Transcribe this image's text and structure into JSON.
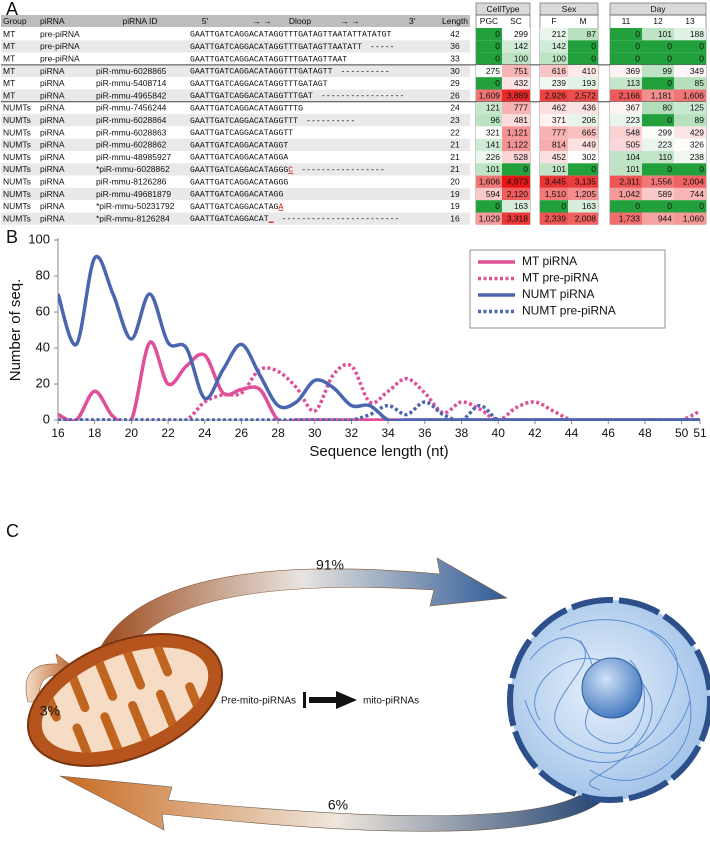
{
  "panel_labels": [
    "A",
    "B",
    "C"
  ],
  "table": {
    "headers": [
      "Group",
      "piRNA",
      "piRNA ID",
      "Length"
    ],
    "seq_header": [
      "5'",
      "→ →",
      "Dloop",
      "→ →",
      "3'"
    ],
    "group_headers": [
      {
        "label": "CellType",
        "columns": [
          "PGC",
          "SC"
        ]
      },
      {
        "label": "Sex",
        "columns": [
          "F",
          "M"
        ]
      },
      {
        "label": "Day",
        "columns": [
          "11",
          "12",
          "13"
        ]
      }
    ],
    "rows": [
      {
        "group": "MT",
        "type": "pre-piRNA",
        "seq": "GAATTGATCAGGACATAGGTTTGATAGTTAATATTATATGT",
        "length": "42",
        "values": [
          "0",
          "299",
          "212",
          "87",
          "0",
          "101",
          "188"
        ]
      },
      {
        "group": "MT",
        "type": "pre-piRNA",
        "seq": "GAATTGATCAGGACATAGGTTTGATAGTTAATATT",
        "gap": "-----",
        "length": "36",
        "values": [
          "0",
          "142",
          "142",
          "0",
          "0",
          "0",
          "0"
        ]
      },
      {
        "group": "MT",
        "type": "pre-piRNA",
        "seq": "GAATTGATCAGGACATAGGTTTGATAGTTAAT",
        "length": "33",
        "values": [
          "0",
          "100",
          "100",
          "0",
          "0",
          "0",
          "0"
        ]
      },
      {
        "group": "MT",
        "type": "piRNA",
        "id": "piR-mmu-6028865",
        "seq": "GAATTGATCAGGACATAGGTTTGATAGTT",
        "gap": "----------",
        "length": "30",
        "values": [
          "275",
          "751",
          "616",
          "410",
          "369",
          "99",
          "349"
        ]
      },
      {
        "group": "MT",
        "type": "piRNA",
        "id": "piR-mmu-5408714",
        "seq": "GAATTGATCAGGACATAGGTTTGATAGT",
        "length": "29",
        "values": [
          "0",
          "432",
          "239",
          "193",
          "113",
          "0",
          "85"
        ]
      },
      {
        "group": "MT",
        "type": "piRNA",
        "id": "piR-mmu-4965842",
        "seq": "GAATTGATCAGGACATAGGTTTGAT",
        "gap": "-----------------",
        "length": "26",
        "values": [
          "1,609",
          "3,889",
          "2,926",
          "2,572",
          "2,166",
          "1,181",
          "1,606"
        ]
      },
      {
        "group": "NUMTs",
        "type": "piRNA",
        "id": "piR-mmu-7456244",
        "seq": "GAATTGATCAGGACATAGGTTTG",
        "length": "24",
        "values": [
          "121",
          "777",
          "462",
          "436",
          "367",
          "80",
          "125"
        ]
      },
      {
        "group": "NUMTs",
        "type": "piRNA",
        "id": "piR-mmu-6028864",
        "seq": "GAATTGATCAGGACATAGGTTT",
        "gap": "----------",
        "length": "23",
        "values": [
          "96",
          "481",
          "371",
          "206",
          "223",
          "0",
          "89"
        ]
      },
      {
        "group": "NUMTs",
        "type": "piRNA",
        "id": "piR-mmu-6028863",
        "seq": "GAATTGATCAGGACATAGGTT",
        "length": "22",
        "values": [
          "321",
          "1,121",
          "777",
          "665",
          "548",
          "299",
          "429"
        ]
      },
      {
        "group": "NUMTs",
        "type": "piRNA",
        "id": "piR-mmu-6028862",
        "seq": "GAATTGATCAGGACATAGGT",
        "length": "21",
        "values": [
          "141",
          "1,122",
          "814",
          "449",
          "505",
          "223",
          "326"
        ]
      },
      {
        "group": "NUMTs",
        "type": "piRNA",
        "id": "piR-mmu-48985927",
        "seq": "GAATTGATCAGGACATAGGA",
        "length": "21",
        "values": [
          "226",
          "528",
          "452",
          "302",
          "104",
          "110",
          "238"
        ]
      },
      {
        "group": "NUMTs",
        "type": "piRNA",
        "id": "*piR-mmu-6028862",
        "seq": "GAATTGATCAGGACATAGGG",
        "mut": "C",
        "gap": "-----------------",
        "length": "21",
        "values": [
          "101",
          "0",
          "101",
          "0",
          "101",
          "0",
          "0"
        ]
      },
      {
        "group": "NUMTs",
        "type": "piRNA",
        "id": "piR-mmu-8126286",
        "seq": "GAATTGATCAGGACATAGGG",
        "length": "20",
        "values": [
          "1,606",
          "4,973",
          "3,445",
          "3,135",
          "2,311",
          "1,556",
          "2,004"
        ]
      },
      {
        "group": "NUMTs",
        "type": "piRNA",
        "id": "piR-mmu-49681879",
        "seq": "GAATTGATCAGGACATAGG",
        "length": "19",
        "values": [
          "594",
          "2,120",
          "1,510",
          "1,205",
          "1,042",
          "589",
          "744"
        ]
      },
      {
        "group": "NUMTs",
        "type": "piRNA",
        "id": "*piR-mmu-50231792",
        "seq": "GAATTGATCAGGACATAG",
        "mut": "A",
        "length": "19",
        "values": [
          "0",
          "163",
          "0",
          "163",
          "0",
          "0",
          "0"
        ]
      },
      {
        "group": "NUMTs",
        "type": "piRNA",
        "id": "*piR-mmu-8126284",
        "seq": "GAATTGATCAGGACAT",
        "mut": "_",
        "gap": "------------------------",
        "length": "16",
        "values": [
          "1,029",
          "3,318",
          "2,339",
          "2,008",
          "1,733",
          "944",
          "1,060"
        ]
      }
    ]
  },
  "chart_data": {
    "type": "line",
    "xlabel": "Sequence length (nt)",
    "ylabel": "Number of seq.",
    "x": [
      16,
      17,
      18,
      19,
      20,
      21,
      22,
      23,
      24,
      25,
      26,
      27,
      28,
      29,
      30,
      31,
      32,
      33,
      34,
      35,
      36,
      37,
      38,
      39,
      40,
      41,
      42,
      43,
      44,
      45,
      46,
      47,
      48,
      49,
      50,
      51
    ],
    "xlim": [
      16,
      51
    ],
    "ylim": [
      0,
      100
    ],
    "xticks": [
      16,
      18,
      20,
      22,
      24,
      26,
      28,
      30,
      32,
      34,
      36,
      38,
      40,
      42,
      44,
      46,
      48,
      50,
      51
    ],
    "yticks": [
      0,
      20,
      40,
      60,
      80,
      100
    ],
    "legend": "upper right",
    "series": [
      {
        "name": "MT piRNA",
        "color": "#e0509a",
        "style": "solid",
        "values": [
          3,
          0,
          16,
          2,
          0,
          43,
          20,
          30,
          36,
          15,
          17,
          17,
          0,
          0,
          0,
          0,
          0,
          0,
          0,
          0,
          0,
          0,
          0,
          0,
          0,
          0,
          0,
          0,
          0,
          0,
          0,
          0,
          0,
          0,
          0,
          0
        ]
      },
      {
        "name": "MT pre-piRNA",
        "color": "#e0509a",
        "style": "dotted",
        "values": [
          0,
          0,
          0,
          0,
          0,
          0,
          0,
          0,
          10,
          14,
          15,
          28,
          27,
          18,
          5,
          25,
          30,
          10,
          16,
          23,
          15,
          4,
          10,
          6,
          0,
          7,
          10,
          5,
          0,
          0,
          0,
          0,
          0,
          0,
          0,
          5
        ]
      },
      {
        "name": "NUMT piRNA",
        "color": "#4a66b0",
        "style": "solid",
        "values": [
          70,
          42,
          90,
          70,
          45,
          70,
          43,
          40,
          12,
          28,
          42,
          25,
          8,
          10,
          22,
          18,
          8,
          8,
          0,
          0,
          0,
          0,
          0,
          0,
          0,
          0,
          0,
          0,
          0,
          0,
          0,
          0,
          0,
          0,
          0,
          0
        ]
      },
      {
        "name": "NUMT pre-piRNA",
        "color": "#4a66b0",
        "style": "dotted",
        "values": [
          0,
          0,
          0,
          0,
          0,
          0,
          0,
          0,
          0,
          0,
          0,
          0,
          0,
          0,
          0,
          0,
          0,
          3,
          8,
          3,
          10,
          3,
          0,
          8,
          0,
          0,
          0,
          0,
          0,
          0,
          0,
          0,
          0,
          0,
          0,
          0
        ]
      }
    ]
  },
  "diagram": {
    "to_nucleus": "91%",
    "self": "3%",
    "from_nucleus": "6%",
    "source": "Pre-mito-piRNAs",
    "product": "mito-piRNAs"
  }
}
